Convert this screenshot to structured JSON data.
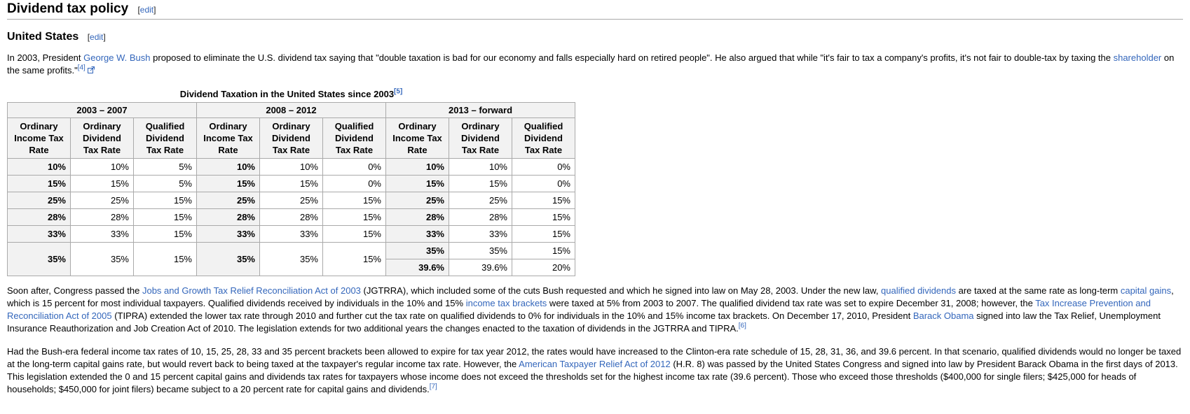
{
  "headings": {
    "h2": "Dividend tax policy",
    "h3": "United States",
    "edit_label": "edit"
  },
  "colors": {
    "link": "#3366bb",
    "table_border": "#aaaaaa",
    "header_bg": "#f2f2f2"
  },
  "paragraphs": [
    {
      "name": "intro",
      "segments": [
        {
          "type": "t",
          "text": "In 2003, President "
        },
        {
          "type": "a",
          "text": "George W. Bush"
        },
        {
          "type": "t",
          "text": " proposed to eliminate the U.S. dividend tax saying that \"double taxation is bad for our economy and falls especially hard on retired people\". He also argued that while \"it's fair to tax a company's profits, it's not fair to double-tax by taxing the "
        },
        {
          "type": "a",
          "text": "shareholder"
        },
        {
          "type": "t",
          "text": " on the same profits.\""
        },
        {
          "type": "ref",
          "text": "[4]"
        },
        {
          "type": "ext"
        }
      ]
    },
    {
      "name": "jgtrra",
      "segments": [
        {
          "type": "t",
          "text": "Soon after, Congress passed the "
        },
        {
          "type": "a",
          "text": "Jobs and Growth Tax Relief Reconciliation Act of 2003"
        },
        {
          "type": "t",
          "text": " (JGTRRA), which included some of the cuts Bush requested and which he signed into law on May 28, 2003. Under the new law, "
        },
        {
          "type": "a",
          "text": "qualified dividends"
        },
        {
          "type": "t",
          "text": " are taxed at the same rate as long-term "
        },
        {
          "type": "a",
          "text": "capital gains"
        },
        {
          "type": "t",
          "text": ", which is 15 percent for most individual taxpayers. Qualified dividends received by individuals in the 10% and 15% "
        },
        {
          "type": "a",
          "text": "income tax brackets"
        },
        {
          "type": "t",
          "text": " were taxed at 5% from 2003 to 2007. The qualified dividend tax rate was set to expire December 31, 2008; however, the "
        },
        {
          "type": "a",
          "text": "Tax Increase Prevention and Reconciliation Act of 2005"
        },
        {
          "type": "t",
          "text": " (TIPRA) extended the lower tax rate through 2010 and further cut the tax rate on qualified dividends to 0% for individuals in the 10% and 15% income tax brackets. On December 17, 2010, President "
        },
        {
          "type": "a",
          "text": "Barack Obama"
        },
        {
          "type": "t",
          "text": " signed into law the Tax Relief, Unemployment Insurance Reauthorization and Job Creation Act of 2010. The legislation extends for two additional years the changes enacted to the taxation of dividends in the JGTRRA and TIPRA."
        },
        {
          "type": "ref",
          "text": "[6]"
        }
      ]
    },
    {
      "name": "atra",
      "segments": [
        {
          "type": "t",
          "text": "Had the Bush-era federal income tax rates of 10, 15, 25, 28, 33 and 35 percent brackets been allowed to expire for tax year 2012, the rates would have increased to the Clinton-era rate schedule of 15, 28, 31, 36, and 39.6 percent. In that scenario, qualified dividends would no longer be taxed at the long-term capital gains rate, but would revert back to being taxed at the taxpayer's regular income tax rate. However, the "
        },
        {
          "type": "a",
          "text": "American Taxpayer Relief Act of 2012"
        },
        {
          "type": "t",
          "text": " (H.R. 8) was passed by the United States Congress and signed into law by President Barack Obama in the first days of 2013. This legislation extended the 0 and 15 percent capital gains and dividends tax rates for taxpayers whose income does not exceed the thresholds set for the highest income tax rate (39.6 percent). Those who exceed those thresholds ($400,000 for single filers; $425,000 for heads of households; $450,000 for joint filers) became subject to a 20 percent rate for capital gains and dividends."
        },
        {
          "type": "ref",
          "text": "[7]"
        }
      ]
    }
  ],
  "table": {
    "caption": "Dividend Taxation in the United States since 2003",
    "caption_ref": "[5]",
    "groups": [
      "2003 – 2007",
      "2008 – 2012",
      "2013 – forward"
    ],
    "columns": [
      "Ordinary Income Tax Rate",
      "Ordinary Dividend Tax Rate",
      "Qualified Dividend Tax Rate"
    ],
    "rows": [
      [
        "10%",
        "10%",
        "5%",
        "10%",
        "10%",
        "0%",
        "10%",
        "10%",
        "0%"
      ],
      [
        "15%",
        "15%",
        "5%",
        "15%",
        "15%",
        "0%",
        "15%",
        "15%",
        "0%"
      ],
      [
        "25%",
        "25%",
        "15%",
        "25%",
        "25%",
        "15%",
        "25%",
        "25%",
        "15%"
      ],
      [
        "28%",
        "28%",
        "15%",
        "28%",
        "28%",
        "15%",
        "28%",
        "28%",
        "15%"
      ],
      [
        "33%",
        "33%",
        "15%",
        "33%",
        "33%",
        "15%",
        "33%",
        "33%",
        "15%"
      ]
    ],
    "last_row": {
      "merged": [
        "35%",
        "35%",
        "15%",
        "35%",
        "35%",
        "15%"
      ],
      "sub_rows": [
        [
          "35%",
          "35%",
          "15%"
        ],
        [
          "39.6%",
          "39.6%",
          "20%"
        ]
      ]
    }
  }
}
